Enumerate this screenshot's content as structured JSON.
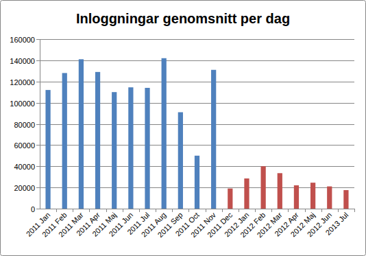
{
  "chart_data": {
    "type": "bar",
    "title": "Inloggningar genomsnitt per dag",
    "categories": [
      "2011 Jan",
      "2011 Feb",
      "2011 Mar",
      "2011 Apr",
      "2011 Maj",
      "2011 Jun",
      "2011 Jul",
      "2011 Aug",
      "2011 Sep",
      "2011 Oct",
      "2011 Nov",
      "2011 Dec",
      "2012 Jan",
      "2012 Feb",
      "2012 Mar",
      "2012 Apr",
      "2012 Maj",
      "2012 Jun",
      "2013 Jul"
    ],
    "values": [
      112000,
      128000,
      141000,
      129000,
      110000,
      114500,
      114000,
      142000,
      91000,
      50000,
      131000,
      19000,
      28500,
      40000,
      33500,
      22000,
      24500,
      21000,
      17500
    ],
    "colors": [
      "#4f81bd",
      "#4f81bd",
      "#4f81bd",
      "#4f81bd",
      "#4f81bd",
      "#4f81bd",
      "#4f81bd",
      "#4f81bd",
      "#4f81bd",
      "#4f81bd",
      "#4f81bd",
      "#c0504d",
      "#c0504d",
      "#c0504d",
      "#c0504d",
      "#c0504d",
      "#c0504d",
      "#c0504d",
      "#c0504d"
    ],
    "ylim": [
      0,
      160000
    ],
    "yticks": [
      0,
      20000,
      40000,
      60000,
      80000,
      100000,
      120000,
      140000,
      160000
    ],
    "grid": true
  }
}
